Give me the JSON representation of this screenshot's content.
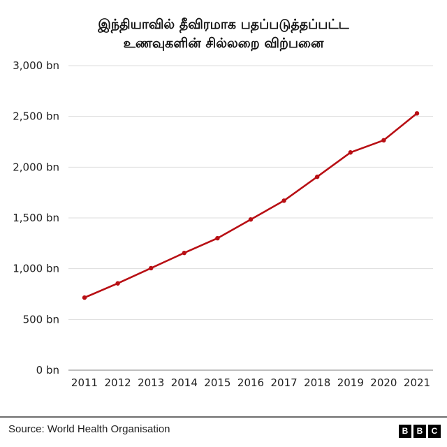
{
  "title": {
    "line1": "இந்தியாவில் தீவிரமாக பதப்படுத்தப்பட்ட",
    "line2": "உணவுகளின் சில்லறை விற்பனை"
  },
  "footer": {
    "source": "Source: World Health Organisation",
    "logo": [
      "B",
      "B",
      "C"
    ]
  },
  "colors": {
    "line": "#b80f14",
    "grid": "#dddddd",
    "baseline": "#999999"
  },
  "chart_data": {
    "type": "line",
    "title": "இந்தியாவில் தீவிரமாக பதப்படுத்தப்பட்ட உணவுகளின் சில்லறை விற்பனை",
    "xlabel": "",
    "ylabel": "",
    "categories": [
      "2011",
      "2012",
      "2013",
      "2014",
      "2015",
      "2016",
      "2017",
      "2018",
      "2019",
      "2020",
      "2021"
    ],
    "series": [
      {
        "name": "Retail sales of ultra-processed foods",
        "values": [
          715,
          855,
          1005,
          1155,
          1300,
          1485,
          1670,
          1905,
          2145,
          2265,
          2530
        ]
      }
    ],
    "yticks": [
      0,
      500,
      1000,
      1500,
      2000,
      2500,
      3000
    ],
    "ytick_labels": [
      "0 bn",
      "500 bn",
      "1,000 bn",
      "1,500 bn",
      "2,000 bn",
      "2,500 bn",
      "3,000 bn"
    ],
    "ylim": [
      0,
      3000
    ],
    "grid": true,
    "legend": "none",
    "source": "Source: World Health Organisation"
  }
}
